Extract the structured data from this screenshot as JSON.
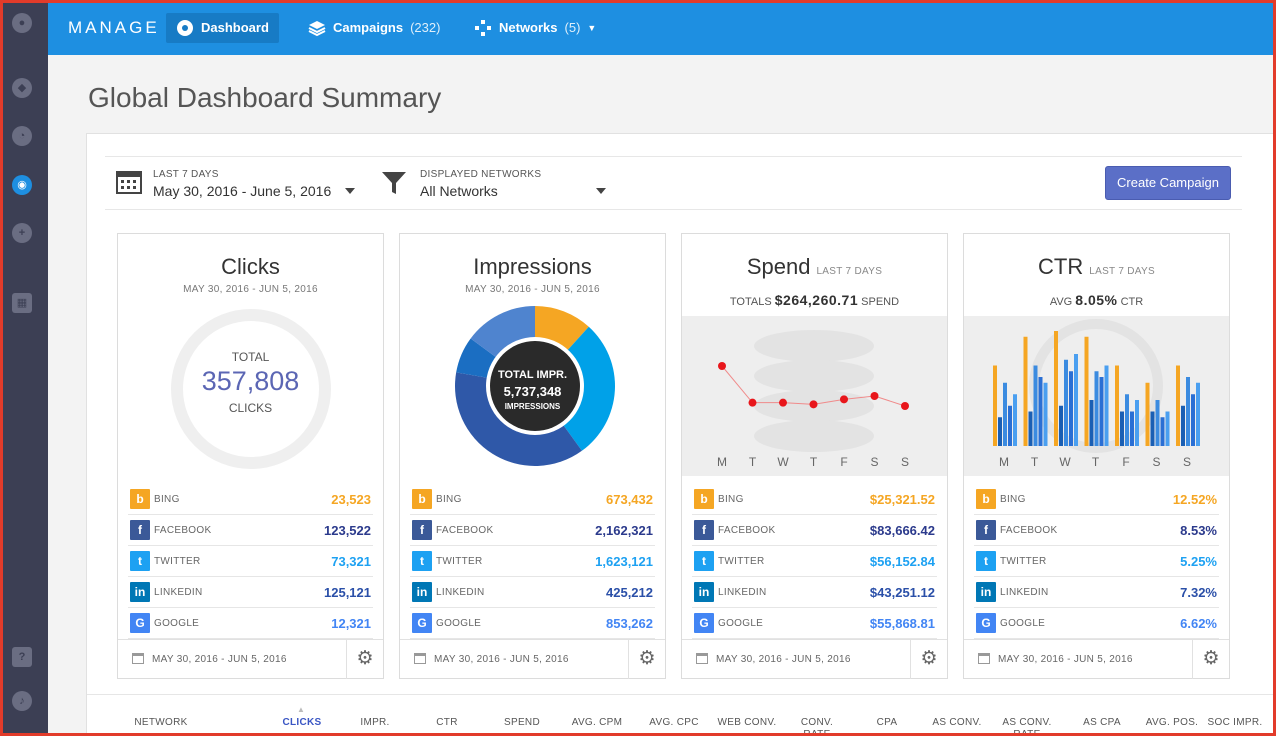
{
  "brand": "MANAGE",
  "nav": [
    {
      "label": "Dashboard",
      "count": "",
      "icon": "dashboard-icon"
    },
    {
      "label": "Campaigns",
      "count": "(232)",
      "icon": "layers-icon"
    },
    {
      "label": "Networks",
      "count": "(5)",
      "icon": "network-icon"
    }
  ],
  "sidebar_icons": [
    "user-icon",
    "tag-icon",
    "speed-icon",
    "dashboard-icon",
    "add-user-icon",
    "apps-icon",
    "help-icon",
    "bell-icon"
  ],
  "page_title": "Global Dashboard Summary",
  "filters": {
    "date_label": "LAST 7 DAYS",
    "date_value": "May 30, 2016 - June 5, 2016",
    "network_label": "DISPLAYED NETWORKS",
    "network_value": "All Networks"
  },
  "create_button": "Create Campaign",
  "colors": {
    "bing": "#f5a623",
    "facebook": "#3b5998",
    "twitter": "#1da1f2",
    "linkedin": "#0077b5",
    "google": "#4285f4"
  },
  "network_names": [
    "BING",
    "FACEBOOK",
    "TWITTER",
    "LINKEDIN",
    "GOOGLE"
  ],
  "cards": [
    {
      "title": "Clicks",
      "subtitle": "MAY 30, 2016 - JUN 5, 2016",
      "total_label": "TOTAL",
      "total_value": "357,808",
      "total_unit": "CLICKS",
      "values": [
        "23,523",
        "123,522",
        "73,321",
        "125,121",
        "12,321"
      ],
      "footer_date": "MAY 30, 2016 - JUN 5, 2016"
    },
    {
      "title": "Impressions",
      "subtitle": "MAY 30, 2016 - JUN 5, 2016",
      "total_label": "TOTAL IMPR.",
      "total_value": "5,737,348",
      "total_unit": "IMPRESSIONS",
      "values": [
        "673,432",
        "2,162,321",
        "1,623,121",
        "425,212",
        "853,262"
      ],
      "footer_date": "MAY 30, 2016 - JUN 5, 2016"
    },
    {
      "title": "Spend",
      "title_sub": "LAST 7 DAYS",
      "summary_prefix": "TOTALS",
      "summary_value": "$264,260.71",
      "summary_suffix": "SPEND",
      "values": [
        "$25,321.52",
        "$83,666.42",
        "$56,152.84",
        "$43,251.12",
        "$55,868.81"
      ],
      "footer_date": "MAY 30, 2016 - JUN 5, 2016"
    },
    {
      "title": "CTR",
      "title_sub": "LAST 7 DAYS",
      "summary_prefix": "AVG",
      "summary_value": "8.05%",
      "summary_suffix": "CTR",
      "values": [
        "12.52%",
        "8.53%",
        "5.25%",
        "7.32%",
        "6.62%"
      ],
      "footer_date": "MAY 30, 2016 - JUN 5, 2016"
    }
  ],
  "chart_data": [
    {
      "type": "pie",
      "categories": [
        "BING",
        "FACEBOOK",
        "TWITTER",
        "LINKEDIN",
        "GOOGLE"
      ],
      "values": [
        673432,
        2162321,
        1623121,
        425212,
        853262
      ]
    },
    {
      "type": "line",
      "x": [
        "M",
        "T",
        "W",
        "T",
        "F",
        "S",
        "S"
      ],
      "series": [
        {
          "values": [
            4.8,
            2.6,
            2.6,
            2.5,
            2.8,
            3.0,
            2.4
          ]
        }
      ],
      "ylim": [
        0,
        6
      ]
    },
    {
      "type": "bar",
      "x": [
        "M",
        "T",
        "W",
        "T",
        "F",
        "S",
        "S"
      ],
      "series": [
        {
          "name": "BING",
          "values": [
            0.7,
            0.95,
            1.0,
            0.95,
            0.7,
            0.55,
            0.7
          ]
        },
        {
          "name": "FACEBOOK",
          "values": [
            0.25,
            0.3,
            0.35,
            0.4,
            0.3,
            0.3,
            0.35
          ]
        },
        {
          "name": "TWITTER",
          "values": [
            0.55,
            0.7,
            0.75,
            0.65,
            0.45,
            0.4,
            0.6
          ]
        },
        {
          "name": "LINKEDIN",
          "values": [
            0.35,
            0.6,
            0.65,
            0.6,
            0.3,
            0.25,
            0.45
          ]
        },
        {
          "name": "GOOGLE",
          "values": [
            0.45,
            0.55,
            0.8,
            0.7,
            0.4,
            0.3,
            0.55
          ]
        }
      ],
      "ylim": [
        0,
        1
      ]
    }
  ],
  "table_headers": [
    {
      "label": "NETWORK",
      "active": false
    },
    {
      "label": "CLICKS",
      "active": true
    },
    {
      "label": "IMPR.",
      "active": false
    },
    {
      "label": "CTR",
      "active": false
    },
    {
      "label": "SPEND",
      "active": false
    },
    {
      "label": "AVG. CPM",
      "active": false
    },
    {
      "label": "AVG. CPC",
      "active": false
    },
    {
      "label": "WEB CONV.",
      "active": false
    },
    {
      "label": "CONV. RATE",
      "active": false
    },
    {
      "label": "CPA",
      "active": false
    },
    {
      "label": "AS CONV.",
      "active": false
    },
    {
      "label": "AS CONV. RATE",
      "active": false
    },
    {
      "label": "AS CPA",
      "active": false
    },
    {
      "label": "AVG. POS.",
      "active": false
    },
    {
      "label": "SOC IMPR.",
      "active": false
    }
  ]
}
